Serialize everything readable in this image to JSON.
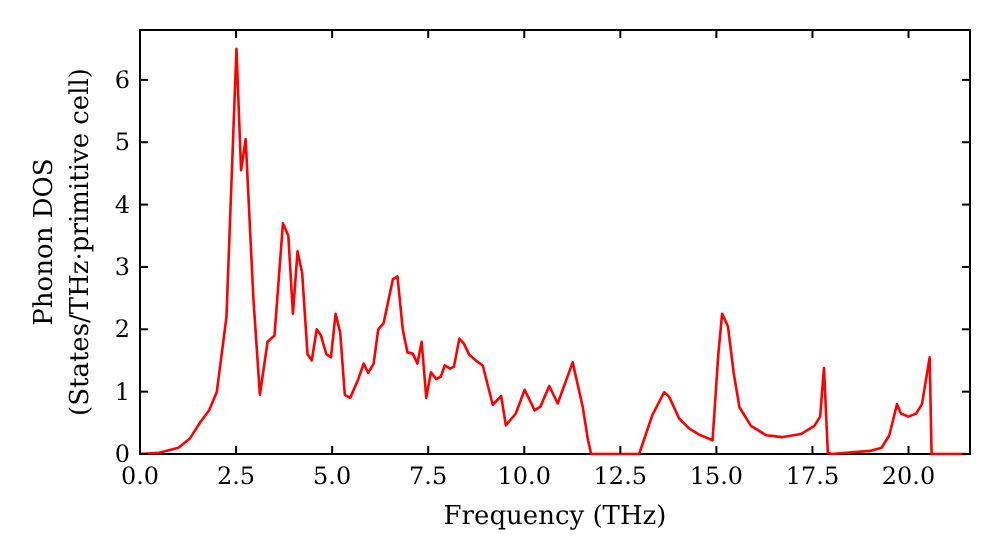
{
  "chart_data": {
    "type": "line",
    "xlabel": "Frequency (THz)",
    "ylabel": "Phonon DOS\n(States/THz·primitive cell)",
    "x": [
      0,
      0.5,
      1.0,
      1.3,
      1.56,
      1.8,
      2.0,
      2.25,
      2.51,
      2.63,
      2.75,
      2.95,
      3.12,
      3.32,
      3.5,
      3.72,
      3.86,
      3.98,
      4.1,
      4.22,
      4.36,
      4.47,
      4.6,
      4.71,
      4.85,
      4.97,
      5.09,
      5.21,
      5.33,
      5.47,
      5.68,
      5.82,
      5.94,
      6.08,
      6.2,
      6.34,
      6.58,
      6.7,
      6.84,
      6.96,
      7.1,
      7.22,
      7.33,
      7.45,
      7.57,
      7.71,
      7.83,
      7.93,
      8.07,
      8.17,
      8.31,
      8.43,
      8.57,
      8.74,
      8.92,
      9.18,
      9.4,
      9.52,
      9.78,
      10.01,
      10.27,
      10.42,
      10.65,
      10.87,
      11.26,
      11.52,
      11.66,
      11.74,
      12.99,
      13.33,
      13.64,
      13.77,
      14.03,
      14.29,
      14.55,
      14.9,
      15.05,
      15.15,
      15.3,
      15.45,
      15.6,
      15.9,
      16.3,
      16.7,
      17.2,
      17.55,
      17.7,
      17.8,
      17.9,
      18.0,
      19.0,
      19.3,
      19.5,
      19.6,
      19.7,
      19.8,
      20.0,
      20.2,
      20.35,
      20.55,
      20.6,
      21.5
    ],
    "series": [
      {
        "color": "#ff0000",
        "values": [
          0,
          0.02,
          0.1,
          0.25,
          0.5,
          0.7,
          1.0,
          2.2,
          6.5,
          4.55,
          5.05,
          2.5,
          0.95,
          1.8,
          1.9,
          3.7,
          3.5,
          2.25,
          3.25,
          2.9,
          1.6,
          1.5,
          2.0,
          1.9,
          1.6,
          1.55,
          2.25,
          1.95,
          0.95,
          0.9,
          1.2,
          1.45,
          1.3,
          1.45,
          2.0,
          2.1,
          2.8,
          2.85,
          1.99,
          1.63,
          1.61,
          1.45,
          1.8,
          0.9,
          1.31,
          1.2,
          1.24,
          1.42,
          1.37,
          1.4,
          1.85,
          1.77,
          1.59,
          1.5,
          1.42,
          0.79,
          0.93,
          0.46,
          0.65,
          1.03,
          0.7,
          0.76,
          1.09,
          0.81,
          1.47,
          0.76,
          0.22,
          0.0,
          0.0,
          0.62,
          0.99,
          0.92,
          0.57,
          0.41,
          0.31,
          0.22,
          1.6,
          2.25,
          2.05,
          1.3,
          0.75,
          0.45,
          0.3,
          0.27,
          0.32,
          0.45,
          0.6,
          1.38,
          0.02,
          0,
          0.05,
          0.1,
          0.3,
          0.55,
          0.8,
          0.65,
          0.6,
          0.65,
          0.8,
          1.55,
          0,
          0
        ]
      }
    ],
    "xlim": [
      0,
      21.6
    ],
    "xticks": [
      {
        "value": 0,
        "label": "0.0"
      },
      {
        "value": 2.5,
        "label": "2.5"
      },
      {
        "value": 5,
        "label": "5.0"
      },
      {
        "value": 7.5,
        "label": "7.5"
      },
      {
        "value": 10,
        "label": "10.0"
      },
      {
        "value": 12.5,
        "label": "12.5"
      },
      {
        "value": 15,
        "label": "15.0"
      },
      {
        "value": 17.5,
        "label": "17.5"
      },
      {
        "value": 20,
        "label": "20.0"
      }
    ],
    "ylim": [
      0,
      6.8
    ],
    "yticks": [
      0,
      1,
      2,
      3,
      4,
      5,
      6
    ],
    "grid": false,
    "line_style": "solid",
    "marker": "none"
  }
}
